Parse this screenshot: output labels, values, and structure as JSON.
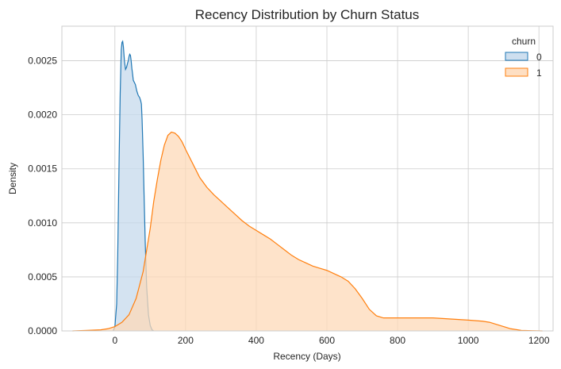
{
  "chart_data": {
    "type": "area",
    "title": "Recency Distribution by Churn Status",
    "xlabel": "Recency (Days)",
    "ylabel": "Density",
    "xlim": [
      -150,
      1240
    ],
    "ylim": [
      0,
      0.00282
    ],
    "x_ticks": [
      0,
      200,
      400,
      600,
      800,
      1000,
      1200
    ],
    "x_tick_labels": [
      "0",
      "200",
      "400",
      "600",
      "800",
      "1000",
      "1200"
    ],
    "y_ticks": [
      0,
      0.0005,
      0.001,
      0.0015,
      0.002,
      0.0025
    ],
    "y_tick_labels": [
      "0.0000",
      "0.0005",
      "0.0010",
      "0.0015",
      "0.0020",
      "0.0025"
    ],
    "grid": true,
    "legend": {
      "title": "churn",
      "placement": "top-right"
    },
    "series": [
      {
        "name": "0",
        "color": "#1f77b4",
        "fill": "#c5d9ec",
        "x": [
          -5,
          0,
          5,
          8,
          12,
          15,
          18,
          20,
          22,
          24,
          27,
          30,
          33,
          36,
          38,
          40,
          42,
          44,
          46,
          48,
          50,
          52,
          55,
          58,
          62,
          66,
          70,
          73,
          75,
          77,
          80,
          83,
          86,
          90,
          95,
          100,
          105,
          110
        ],
        "y": [
          0,
          4e-05,
          0.00025,
          0.0007,
          0.0016,
          0.0022,
          0.0026,
          0.00267,
          0.00268,
          0.00263,
          0.0025,
          0.00242,
          0.00244,
          0.00248,
          0.0025,
          0.00254,
          0.00256,
          0.00255,
          0.0025,
          0.00243,
          0.00238,
          0.00232,
          0.0023,
          0.00228,
          0.00222,
          0.00218,
          0.00216,
          0.00213,
          0.0021,
          0.00195,
          0.00162,
          0.0012,
          0.0008,
          0.0004,
          0.00015,
          5e-05,
          1e-05,
          0
        ]
      },
      {
        "name": "1",
        "color": "#ff7f0e",
        "fill": "#fed9b8",
        "x": [
          -120,
          -80,
          -40,
          -20,
          0,
          20,
          40,
          60,
          80,
          100,
          110,
          120,
          130,
          140,
          150,
          160,
          170,
          180,
          190,
          200,
          220,
          240,
          260,
          280,
          300,
          320,
          340,
          360,
          380,
          400,
          420,
          440,
          460,
          480,
          500,
          520,
          540,
          560,
          580,
          600,
          620,
          640,
          660,
          680,
          700,
          720,
          740,
          760,
          780,
          800,
          850,
          900,
          950,
          1000,
          1040,
          1060,
          1080,
          1100,
          1120,
          1150,
          1180,
          1210
        ],
        "y": [
          0,
          5e-06,
          1e-05,
          2e-05,
          4e-05,
          8e-05,
          0.00015,
          0.0003,
          0.00055,
          0.00095,
          0.0012,
          0.0014,
          0.00158,
          0.00172,
          0.00181,
          0.00184,
          0.00183,
          0.0018,
          0.00175,
          0.00168,
          0.00155,
          0.00142,
          0.00133,
          0.00126,
          0.0012,
          0.00114,
          0.00108,
          0.00102,
          0.00097,
          0.00093,
          0.00089,
          0.00085,
          0.0008,
          0.00075,
          0.0007,
          0.00066,
          0.00063,
          0.0006,
          0.00058,
          0.00056,
          0.00053,
          0.0005,
          0.00046,
          0.00039,
          0.0003,
          0.0002,
          0.00014,
          0.00012,
          0.00012,
          0.00012,
          0.00012,
          0.00012,
          0.00011,
          0.0001,
          9e-05,
          8e-05,
          6e-05,
          4e-05,
          2e-05,
          5e-06,
          2e-06,
          0
        ]
      }
    ]
  }
}
